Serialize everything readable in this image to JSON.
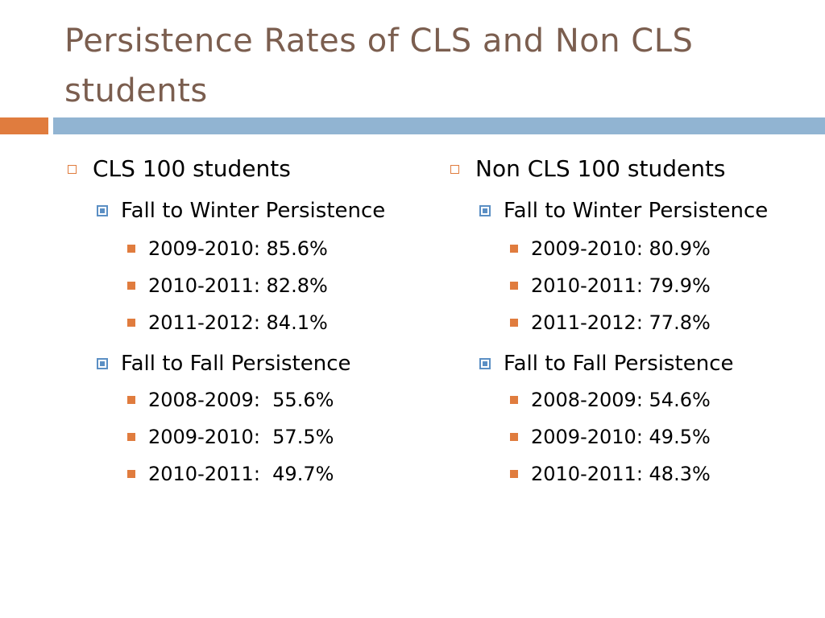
{
  "title": "Persistence Rates of CLS and Non CLS students",
  "colors": {
    "title": "#7b5e4f",
    "accent_orange": "#e07c3e",
    "accent_blue": "#91b4d2",
    "sub_bullet_blue": "#5b8fc4"
  },
  "left": {
    "heading": "CLS 100 students",
    "sections": [
      {
        "label": "Fall to Winter Persistence",
        "items": [
          "2009-2010: 85.6%",
          "2010-2011: 82.8%",
          "2011-2012: 84.1%"
        ]
      },
      {
        "label": "Fall to Fall Persistence",
        "items": [
          "2008-2009:  55.6%",
          "2009-2010:  57.5%",
          "2010-2011:  49.7%"
        ]
      }
    ]
  },
  "right": {
    "heading": "Non CLS 100 students",
    "sections": [
      {
        "label": "Fall to Winter Persistence",
        "items": [
          "2009-2010: 80.9%",
          "2010-2011: 79.9%",
          "2011-2012: 77.8%"
        ]
      },
      {
        "label": "Fall to Fall Persistence",
        "items": [
          "2008-2009: 54.6%",
          "2009-2010: 49.5%",
          "2010-2011: 48.3%"
        ]
      }
    ]
  }
}
